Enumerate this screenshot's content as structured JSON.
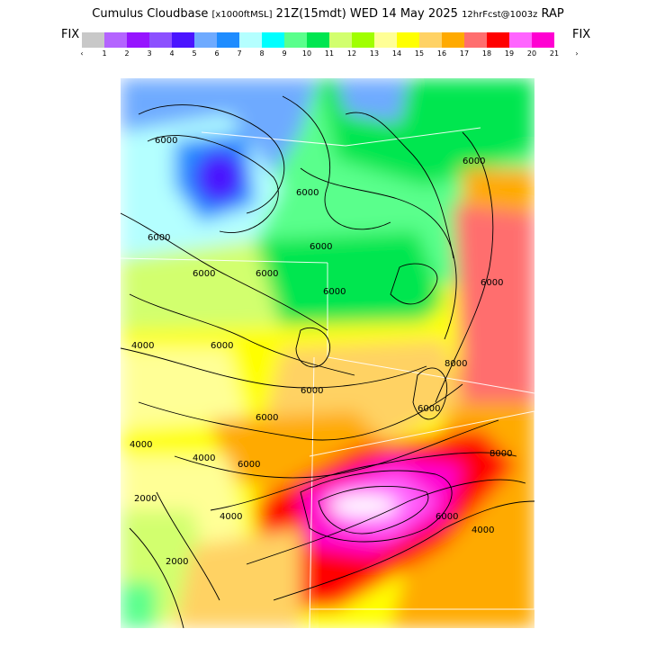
{
  "header": {
    "title_main": "Cumulus Cloudbase",
    "units": "[x1000ftMSL]",
    "valid_time": "21Z(15mdt) WED 14 May 2025",
    "forecast_info": "12hrFcst@1003z",
    "model": "RAP"
  },
  "fix_labels": {
    "left": "FIX",
    "right": "FIX"
  },
  "legend": {
    "colors": [
      "#c8c8c8",
      "#b464ff",
      "#9614ff",
      "#8c50ff",
      "#4a14ff",
      "#6eaaff",
      "#1e8cff",
      "#b4ffff",
      "#00ffff",
      "#5aff8c",
      "#00e650",
      "#d2ff6e",
      "#a0ff00",
      "#ffff96",
      "#ffff00",
      "#ffd264",
      "#ffaa00",
      "#ff6e6e",
      "#ff0000",
      "#ff64ff",
      "#ff00d2"
    ],
    "tick_labels": [
      "‹",
      "1",
      "2",
      "3",
      "4",
      "5",
      "6",
      "7",
      "8",
      "9",
      "10",
      "11",
      "12",
      "13",
      "14",
      "15",
      "16",
      "17",
      "18",
      "19",
      "20",
      "21",
      "›"
    ]
  },
  "map": {
    "contour_labels": [
      "6000",
      "6000",
      "6000",
      "6000",
      "6000",
      "6000",
      "6000",
      "6000",
      "6000",
      "6000",
      "6000",
      "6000",
      "6000",
      "4000",
      "4000",
      "4000",
      "4000",
      "2000",
      "2000",
      "4000",
      "8000",
      "8000",
      "6000",
      "6000"
    ]
  }
}
